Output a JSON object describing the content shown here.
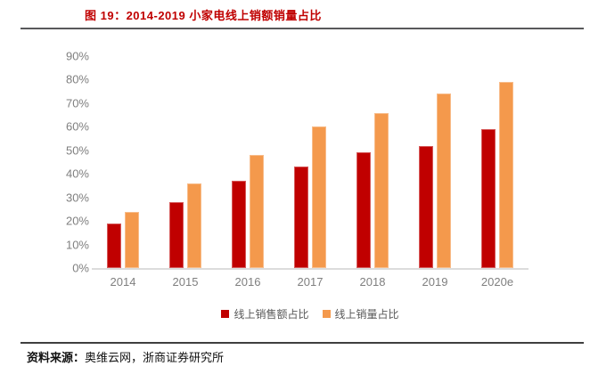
{
  "title": {
    "text": "图 19：2014-2019 小家电线上销额销量占比"
  },
  "source": {
    "label": "资料来源：",
    "text": "奥维云网，浙商证券研究所"
  },
  "colors": {
    "series_red": "#C00000",
    "series_orange": "#F4994C",
    "title_text": "#C00000",
    "axis_text": "#7F7F7F",
    "legend_text": "#595959",
    "axis_line": "#DCDCDC",
    "title_rule": "#58595B",
    "source_rule": "#3F3F3F"
  },
  "chart_data": {
    "type": "bar",
    "categories": [
      "2014",
      "2015",
      "2016",
      "2017",
      "2018",
      "2019",
      "2020e"
    ],
    "series": [
      {
        "name": "线上销售额占比",
        "color_key": "series_red",
        "values": [
          19,
          28,
          37,
          43,
          49,
          52,
          59
        ]
      },
      {
        "name": "线上销量占比",
        "color_key": "series_orange",
        "values": [
          24,
          36,
          48,
          60,
          66,
          74,
          79
        ]
      }
    ],
    "title": "图 19：2014-2019 小家电线上销额销量占比",
    "xlabel": "",
    "ylabel": "",
    "ylim": [
      0,
      90
    ],
    "ytick_step": 10,
    "ytick_labels": [
      "0%",
      "10%",
      "20%",
      "30%",
      "40%",
      "50%",
      "60%",
      "70%",
      "80%",
      "90%"
    ],
    "grid": false,
    "legend_position": "bottom"
  }
}
